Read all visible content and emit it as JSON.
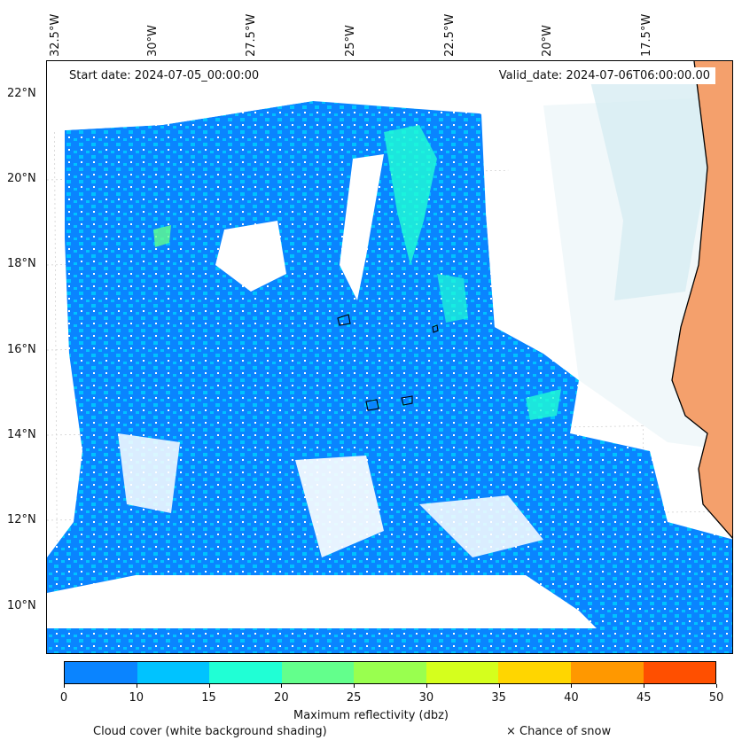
{
  "header": {
    "start_date": "Start date: 2024-07-05_00:00:00",
    "valid_date": "Valid_date: 2024-07-06T06:00:00.00"
  },
  "axes": {
    "longitude_labels": [
      "32.5°W",
      "30°W",
      "27.5°W",
      "25°W",
      "22.5°W",
      "20°W",
      "17.5°W"
    ],
    "latitude_labels": [
      "22°N",
      "20°N",
      "18°N",
      "16°N",
      "14°N",
      "12°N",
      "10°N"
    ]
  },
  "colorbar": {
    "label": "Maximum reflectivity (dbz)",
    "ticks": [
      "0",
      "10",
      "15",
      "20",
      "25",
      "30",
      "35",
      "40",
      "45",
      "50"
    ],
    "colors": [
      "#0a84ff",
      "#00c3ff",
      "#20ffd5",
      "#63ff8c",
      "#99ff4f",
      "#d5ff1d",
      "#ffd600",
      "#ff9800",
      "#ff4f00"
    ]
  },
  "legend": {
    "cloud_cover": "Cloud cover (white background shading)",
    "snow": "× Chance of snow"
  },
  "map": {
    "region": "Eastern tropical Atlantic off West Africa",
    "precip_color_main": "#0a84ff",
    "precip_color_light": "#00c3ff",
    "precip_color_high": "#20ffd5",
    "land_color": "#f4a06c"
  }
}
